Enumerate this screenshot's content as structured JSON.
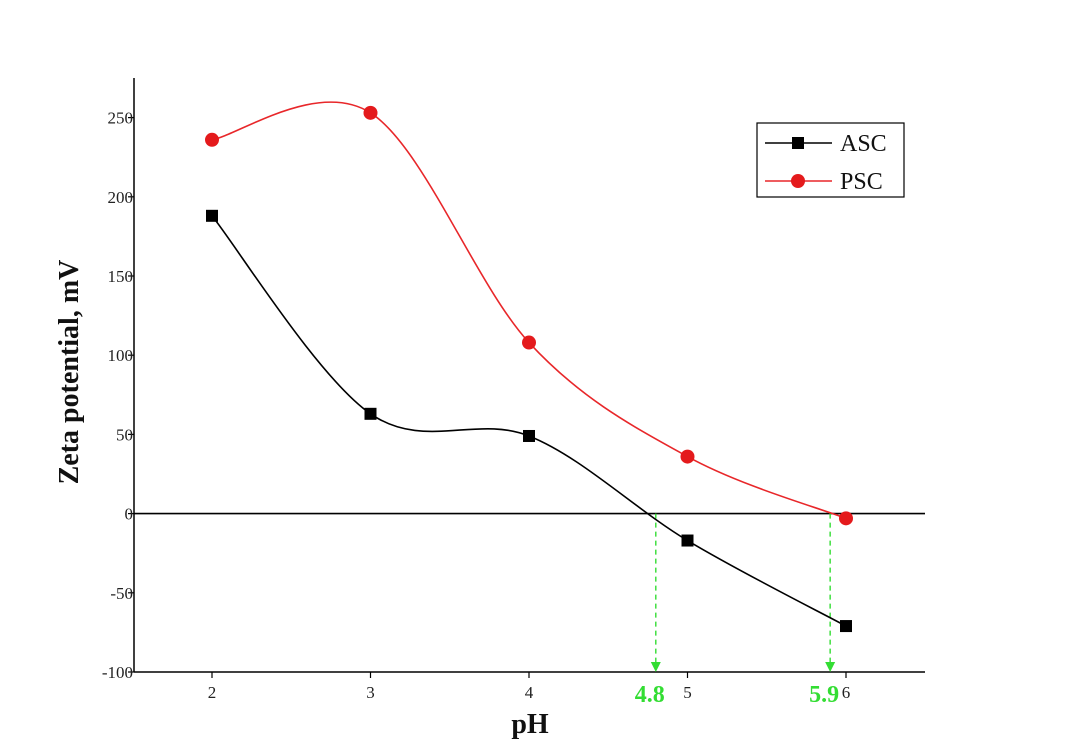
{
  "chart_data": {
    "type": "line",
    "xlabel": "pH",
    "ylabel": "Zeta potential, mV",
    "xlim": [
      1.5,
      6.5
    ],
    "ylim": [
      -100,
      275
    ],
    "x_ticks": [
      "2",
      "3",
      "4",
      "5",
      "6"
    ],
    "y_ticks": [
      "-100",
      "-50",
      "0",
      "50",
      "100",
      "150",
      "200",
      "250"
    ],
    "zero_line": true,
    "legend_position": "top-right",
    "series": [
      {
        "name": "ASC",
        "marker": "square",
        "color": "#000000",
        "x": [
          2,
          3,
          4,
          5,
          6
        ],
        "y": [
          188,
          63,
          49,
          -17,
          -71
        ]
      },
      {
        "name": "PSC",
        "marker": "circle",
        "color": "#e41a1c",
        "x": [
          2,
          3,
          4,
          5,
          6
        ],
        "y": [
          236,
          253,
          108,
          36,
          -3
        ]
      }
    ],
    "annotations": [
      {
        "label": "4.8",
        "x": 4.8,
        "color": "#33dd33"
      },
      {
        "label": "5.9",
        "x": 5.9,
        "color": "#33dd33"
      }
    ]
  }
}
